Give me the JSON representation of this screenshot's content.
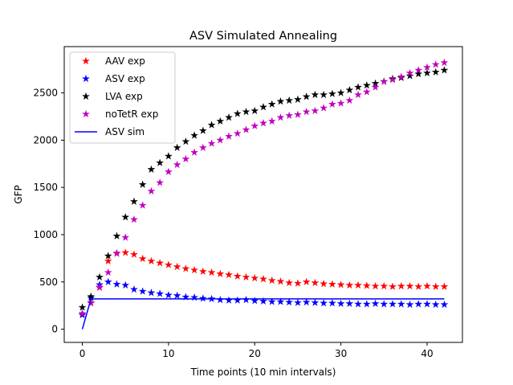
{
  "chart_data": {
    "type": "scatter",
    "title": "ASV Simulated Annealing",
    "xlabel": "Time points (10 min intervals)",
    "ylabel": "GFP",
    "xlim": [
      -2.1,
      44.1
    ],
    "ylim": [
      -140,
      2990
    ],
    "xticks": [
      0,
      10,
      20,
      30,
      40
    ],
    "yticks": [
      0,
      500,
      1000,
      1500,
      2000,
      2500
    ],
    "grid": false,
    "legend_position": "top-left",
    "series": [
      {
        "name": "AAV exp",
        "kind": "marker",
        "marker": "star",
        "color": "#ff0000",
        "x": [
          0,
          1,
          2,
          3,
          4,
          5,
          6,
          7,
          8,
          9,
          10,
          11,
          12,
          13,
          14,
          15,
          16,
          17,
          18,
          19,
          20,
          21,
          22,
          23,
          24,
          25,
          26,
          27,
          28,
          29,
          30,
          31,
          32,
          33,
          34,
          35,
          36,
          37,
          38,
          39,
          40,
          41,
          42
        ],
        "y": [
          165,
          280,
          440,
          720,
          800,
          810,
          790,
          745,
          720,
          700,
          680,
          660,
          640,
          625,
          610,
          600,
          585,
          575,
          560,
          550,
          540,
          530,
          515,
          505,
          490,
          485,
          500,
          490,
          480,
          475,
          470,
          465,
          465,
          460,
          455,
          455,
          450,
          455,
          455,
          450,
          455,
          450,
          450
        ]
      },
      {
        "name": "ASV exp",
        "kind": "marker",
        "marker": "star",
        "color": "#0000ff",
        "x": [
          0,
          1,
          2,
          3,
          4,
          5,
          6,
          7,
          8,
          9,
          10,
          11,
          12,
          13,
          14,
          15,
          16,
          17,
          18,
          19,
          20,
          21,
          22,
          23,
          24,
          25,
          26,
          27,
          28,
          29,
          30,
          31,
          32,
          33,
          34,
          35,
          36,
          37,
          38,
          39,
          40,
          41,
          42
        ],
        "y": [
          150,
          330,
          470,
          500,
          475,
          465,
          420,
          400,
          385,
          375,
          360,
          355,
          340,
          335,
          325,
          320,
          310,
          305,
          305,
          310,
          300,
          295,
          290,
          290,
          285,
          280,
          285,
          280,
          275,
          275,
          270,
          270,
          265,
          265,
          270,
          265,
          265,
          265,
          260,
          265,
          265,
          260,
          260
        ]
      },
      {
        "name": "LVA exp",
        "kind": "marker",
        "marker": "star",
        "color": "#000000",
        "x": [
          0,
          1,
          2,
          3,
          4,
          5,
          6,
          7,
          8,
          9,
          10,
          11,
          12,
          13,
          14,
          15,
          16,
          17,
          18,
          19,
          20,
          21,
          22,
          23,
          24,
          25,
          26,
          27,
          28,
          29,
          30,
          31,
          32,
          33,
          34,
          35,
          36,
          37,
          38,
          39,
          40,
          41,
          42
        ],
        "y": [
          230,
          345,
          550,
          775,
          985,
          1185,
          1350,
          1530,
          1690,
          1760,
          1830,
          1920,
          1985,
          2050,
          2100,
          2160,
          2200,
          2240,
          2280,
          2300,
          2310,
          2350,
          2380,
          2410,
          2420,
          2430,
          2460,
          2480,
          2480,
          2490,
          2500,
          2530,
          2560,
          2580,
          2600,
          2620,
          2650,
          2660,
          2680,
          2700,
          2710,
          2720,
          2740
        ]
      },
      {
        "name": "noTetR exp",
        "kind": "marker",
        "marker": "star",
        "color": "#bf00bf",
        "x": [
          0,
          1,
          2,
          3,
          4,
          5,
          6,
          7,
          8,
          9,
          10,
          11,
          12,
          13,
          14,
          15,
          16,
          17,
          18,
          19,
          20,
          21,
          22,
          23,
          24,
          25,
          26,
          27,
          28,
          29,
          30,
          31,
          32,
          33,
          34,
          35,
          36,
          37,
          38,
          39,
          40,
          41,
          42
        ],
        "y": [
          165,
          275,
          445,
          600,
          805,
          970,
          1160,
          1310,
          1460,
          1550,
          1665,
          1740,
          1800,
          1870,
          1920,
          1965,
          2000,
          2040,
          2070,
          2110,
          2150,
          2180,
          2200,
          2240,
          2260,
          2270,
          2300,
          2310,
          2340,
          2380,
          2390,
          2420,
          2480,
          2510,
          2560,
          2620,
          2640,
          2670,
          2710,
          2740,
          2770,
          2800,
          2820
        ]
      },
      {
        "name": "ASV sim",
        "kind": "line",
        "color": "#0000ff",
        "x": [
          0,
          1,
          2,
          42
        ],
        "y": [
          0,
          320,
          320,
          320
        ]
      }
    ]
  }
}
